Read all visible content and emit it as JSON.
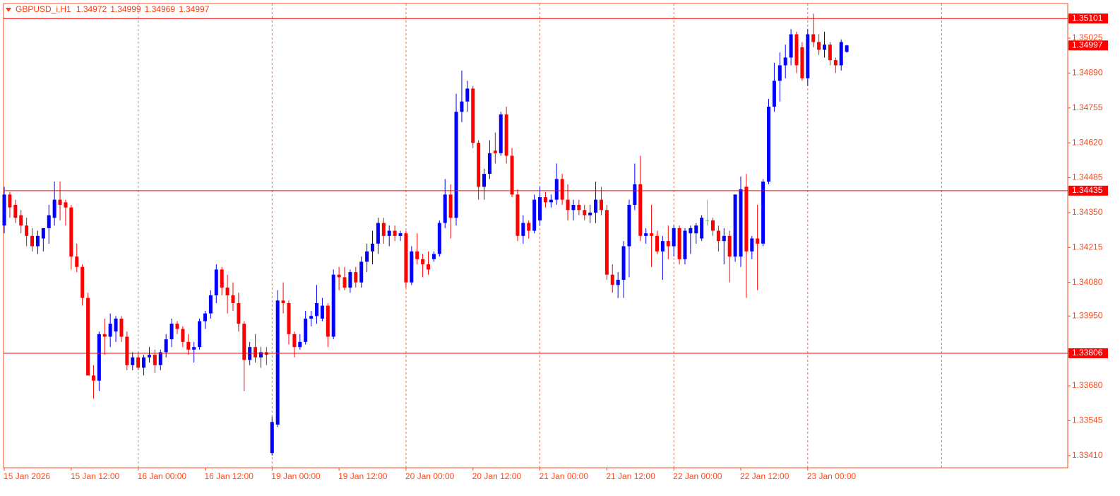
{
  "chart_data": {
    "type": "candlestick",
    "title": "GBPUSD_i,H1",
    "up_color": "#0000ff",
    "down_color": "#ff0000",
    "doji_color": "#55dd55",
    "axis_color": "#ff4a1c",
    "separator_color": "#ff6a3a",
    "hline_color": "#ff0000",
    "xlim": [
      -0.13,
      190.6
    ],
    "ylim": [
      1.33363,
      1.35159
    ],
    "xticks": [
      {
        "value": 0,
        "label": "15 Jan 2026"
      },
      {
        "value": 12,
        "label": "15 Jan 12:00"
      },
      {
        "value": 24,
        "label": "16 Jan 00:00"
      },
      {
        "value": 36,
        "label": "16 Jan 12:00"
      },
      {
        "value": 48,
        "label": "19 Jan 00:00"
      },
      {
        "value": 60,
        "label": "19 Jan 12:00"
      },
      {
        "value": 72,
        "label": "20 Jan 00:00"
      },
      {
        "value": 84,
        "label": "20 Jan 12:00"
      },
      {
        "value": 96,
        "label": "21 Jan 00:00"
      },
      {
        "value": 108,
        "label": "21 Jan 12:00"
      },
      {
        "value": 120,
        "label": "22 Jan 00:00"
      },
      {
        "value": 132,
        "label": "22 Jan 12:00"
      },
      {
        "value": 144,
        "label": "23 Jan 00:00"
      }
    ],
    "period_separators": [
      24,
      48,
      72,
      96,
      120,
      144,
      168
    ],
    "yticks": [
      1.35025,
      {
        "value": 1.3489,
        "label": "1.34890"
      },
      1.34755,
      {
        "value": 1.3462,
        "label": "1.34620"
      },
      1.34485,
      {
        "value": 1.3435,
        "label": "1.34350"
      },
      1.34215,
      {
        "value": 1.3408,
        "label": "1.34080"
      },
      {
        "value": 1.3395,
        "label": "1.33950"
      },
      {
        "value": 1.3368,
        "label": "1.33680"
      },
      1.33545,
      {
        "value": 1.3341,
        "label": "1.33410"
      }
    ],
    "hlines": [
      1.35101,
      1.34435,
      1.33806
    ],
    "open": [
      1.343,
      1.3442,
      1.3438,
      1.3434,
      1.343,
      1.3426,
      1.3422,
      1.3425,
      1.3429,
      1.3433,
      1.344,
      1.3439,
      1.3437,
      1.3418,
      1.3414,
      1.3402,
      1.3372,
      1.337,
      1.3388,
      1.3387,
      1.3389,
      1.3394,
      1.3387,
      1.3376,
      1.3379,
      1.3375,
      1.3379,
      1.338,
      1.3376,
      1.3381,
      1.3386,
      1.3392,
      1.339,
      1.3385,
      1.3382,
      1.3383,
      1.3393,
      1.3396,
      1.3403,
      1.3413,
      1.3406,
      1.3403,
      1.34,
      1.3392,
      1.3378,
      1.3383,
      1.3379,
      1.3381,
      1.3342,
      1.3353,
      1.3401,
      1.34,
      1.3388,
      1.3383,
      1.3385,
      1.3394,
      1.3395,
      1.3394,
      1.3399,
      1.3387,
      1.3411,
      1.341,
      1.3406,
      1.3412,
      1.3408,
      1.3416,
      1.342,
      1.3423,
      1.3431,
      1.3426,
      1.3428,
      1.3426,
      1.3427,
      1.3408,
      1.342,
      1.3417,
      1.3415,
      1.3417,
      1.3419,
      1.3431,
      1.3442,
      1.3433,
      1.3474,
      1.3478,
      1.3483,
      1.3462,
      1.3445,
      1.345,
      1.3459,
      1.3458,
      1.3473,
      1.3457,
      1.3442,
      1.3426,
      1.3431,
      1.3428,
      1.3432,
      1.3441,
      1.3439,
      1.344,
      1.3448,
      1.344,
      1.3436,
      1.3438,
      1.3436,
      1.3434,
      1.3435,
      1.344,
      1.3436,
      1.3411,
      1.3407,
      1.3409,
      1.3422,
      1.3438,
      1.3446,
      1.3426,
      1.3427,
      1.3426,
      1.342,
      1.3424,
      1.3422,
      1.3429,
      1.3417,
      1.3427,
      1.3427,
      1.3425,
      1.3432,
      1.3432,
      1.3428,
      1.3424,
      1.3426,
      1.3418,
      1.3418,
      1.3445,
      1.342,
      1.3425,
      1.3423,
      1.3447,
      1.3476,
      1.3486,
      1.3492,
      1.3495,
      1.3504,
      1.3499,
      1.3487,
      1.3504,
      1.3501,
      1.3498,
      1.35,
      1.3494,
      1.3492,
      1.34972
    ],
    "high": [
      1.3445,
      1.3443,
      1.344,
      1.3436,
      1.3433,
      1.3429,
      1.3428,
      1.3429,
      1.3438,
      1.3447,
      1.3447,
      1.344,
      1.3438,
      1.3423,
      1.3415,
      1.3404,
      1.3376,
      1.3389,
      1.3394,
      1.3396,
      1.3395,
      1.3395,
      1.3389,
      1.3381,
      1.3381,
      1.338,
      1.3383,
      1.3382,
      1.3382,
      1.3388,
      1.3394,
      1.3393,
      1.3391,
      1.3388,
      1.3385,
      1.3394,
      1.3397,
      1.3405,
      1.3415,
      1.3414,
      1.3411,
      1.3408,
      1.3404,
      1.3393,
      1.3385,
      1.3388,
      1.3383,
      1.3383,
      1.3356,
      1.3405,
      1.3408,
      1.3401,
      1.3389,
      1.3388,
      1.3397,
      1.3397,
      1.3407,
      1.3402,
      1.34,
      1.3413,
      1.3414,
      1.3414,
      1.3413,
      1.3414,
      1.3418,
      1.3423,
      1.3428,
      1.3433,
      1.3433,
      1.343,
      1.343,
      1.3428,
      1.3428,
      1.3422,
      1.3427,
      1.3419,
      1.342,
      1.342,
      1.3432,
      1.3448,
      1.3446,
      1.3481,
      1.349,
      1.3486,
      1.3484,
      1.3463,
      1.3452,
      1.3463,
      1.3466,
      1.3474,
      1.3476,
      1.346,
      1.3444,
      1.3434,
      1.3432,
      1.3442,
      1.3445,
      1.3443,
      1.3442,
      1.3454,
      1.345,
      1.3446,
      1.344,
      1.344,
      1.3438,
      1.3438,
      1.3447,
      1.3445,
      1.3438,
      1.3415,
      1.3412,
      1.3424,
      1.344,
      1.3454,
      1.3457,
      1.3429,
      1.3438,
      1.3428,
      1.3426,
      1.343,
      1.343,
      1.343,
      1.3429,
      1.343,
      1.3431,
      1.3434,
      1.344,
      1.3433,
      1.343,
      1.3429,
      1.3428,
      1.3442,
      1.3449,
      1.345,
      1.3426,
      1.3438,
      1.3448,
      1.3479,
      1.3493,
      1.3497,
      1.35,
      1.3506,
      1.3505,
      1.3501,
      1.3506,
      1.3512,
      1.3504,
      1.3505,
      1.3501,
      1.3495,
      1.3502,
      1.34999
    ],
    "low": [
      1.3427,
      1.3433,
      1.3431,
      1.3427,
      1.3422,
      1.342,
      1.3419,
      1.342,
      1.3423,
      1.343,
      1.3432,
      1.343,
      1.3413,
      1.3412,
      1.3399,
      1.3372,
      1.3363,
      1.3366,
      1.338,
      1.3383,
      1.3385,
      1.3385,
      1.3374,
      1.3374,
      1.3374,
      1.3372,
      1.3377,
      1.3373,
      1.3374,
      1.3379,
      1.3383,
      1.3388,
      1.3383,
      1.338,
      1.3377,
      1.3382,
      1.339,
      1.3394,
      1.34,
      1.3403,
      1.3396,
      1.3397,
      1.3389,
      1.3366,
      1.3376,
      1.3377,
      1.3375,
      1.3376,
      1.3341,
      1.3352,
      1.3396,
      1.3384,
      1.3379,
      1.3382,
      1.3384,
      1.3391,
      1.3392,
      1.3393,
      1.3383,
      1.3386,
      1.3405,
      1.3405,
      1.3404,
      1.3406,
      1.3406,
      1.3412,
      1.3415,
      1.3419,
      1.3423,
      1.3422,
      1.3424,
      1.3424,
      1.3406,
      1.3407,
      1.3415,
      1.341,
      1.3411,
      1.3416,
      1.3418,
      1.3429,
      1.3425,
      1.343,
      1.347,
      1.3474,
      1.346,
      1.344,
      1.344,
      1.3448,
      1.3454,
      1.3457,
      1.3454,
      1.3441,
      1.3424,
      1.3423,
      1.3425,
      1.3427,
      1.343,
      1.3437,
      1.3437,
      1.3438,
      1.3438,
      1.3432,
      1.3432,
      1.3434,
      1.3432,
      1.3431,
      1.3431,
      1.3434,
      1.3409,
      1.3404,
      1.3402,
      1.3402,
      1.341,
      1.3436,
      1.3424,
      1.3423,
      1.3414,
      1.3419,
      1.3409,
      1.3417,
      1.3418,
      1.3415,
      1.3415,
      1.3419,
      1.3423,
      1.3424,
      1.343,
      1.3426,
      1.342,
      1.3415,
      1.3408,
      1.3416,
      1.3414,
      1.3402,
      1.3417,
      1.3405,
      1.3422,
      1.3446,
      1.3474,
      1.3478,
      1.3487,
      1.3492,
      1.3489,
      1.3486,
      1.3484,
      1.3499,
      1.3496,
      1.3495,
      1.3492,
      1.3489,
      1.349,
      1.34969
    ],
    "close": [
      1.3442,
      1.3437,
      1.3433,
      1.343,
      1.3426,
      1.3422,
      1.3426,
      1.3429,
      1.3434,
      1.344,
      1.3438,
      1.3437,
      1.3418,
      1.3414,
      1.3402,
      1.3372,
      1.337,
      1.3388,
      1.3387,
      1.3392,
      1.3394,
      1.3387,
      1.3376,
      1.3379,
      1.3375,
      1.3379,
      1.338,
      1.3376,
      1.3381,
      1.3386,
      1.3392,
      1.339,
      1.3385,
      1.3382,
      1.3383,
      1.3393,
      1.3396,
      1.3403,
      1.3413,
      1.3406,
      1.3403,
      1.34,
      1.3392,
      1.3378,
      1.3383,
      1.3379,
      1.3381,
      1.338,
      1.3354,
      1.3401,
      1.34,
      1.3388,
      1.3383,
      1.3385,
      1.3394,
      1.3395,
      1.34,
      1.3399,
      1.3387,
      1.3411,
      1.341,
      1.3406,
      1.3412,
      1.3408,
      1.3416,
      1.342,
      1.3423,
      1.3431,
      1.3426,
      1.3428,
      1.3426,
      1.3427,
      1.3408,
      1.342,
      1.3417,
      1.3415,
      1.3413,
      1.3419,
      1.3431,
      1.3442,
      1.3433,
      1.3474,
      1.3478,
      1.3483,
      1.3462,
      1.3445,
      1.345,
      1.3458,
      1.3458,
      1.3473,
      1.3457,
      1.3442,
      1.3426,
      1.3431,
      1.3428,
      1.344,
      1.3441,
      1.3439,
      1.344,
      1.3448,
      1.344,
      1.3436,
      1.3438,
      1.3436,
      1.3434,
      1.3435,
      1.344,
      1.3436,
      1.3411,
      1.3407,
      1.3409,
      1.3422,
      1.3438,
      1.3446,
      1.3426,
      1.3427,
      1.3426,
      1.342,
      1.3424,
      1.3422,
      1.3429,
      1.3417,
      1.3428,
      1.3429,
      1.343,
      1.3433,
      1.3432,
      1.3428,
      1.3424,
      1.3426,
      1.3418,
      1.3442,
      1.3444,
      1.342,
      1.3425,
      1.3423,
      1.3447,
      1.3476,
      1.3486,
      1.3492,
      1.3495,
      1.3504,
      1.3492,
      1.3487,
      1.3504,
      1.3501,
      1.3498,
      1.35,
      1.3494,
      1.3492,
      1.3501,
      1.34997
    ]
  }
}
